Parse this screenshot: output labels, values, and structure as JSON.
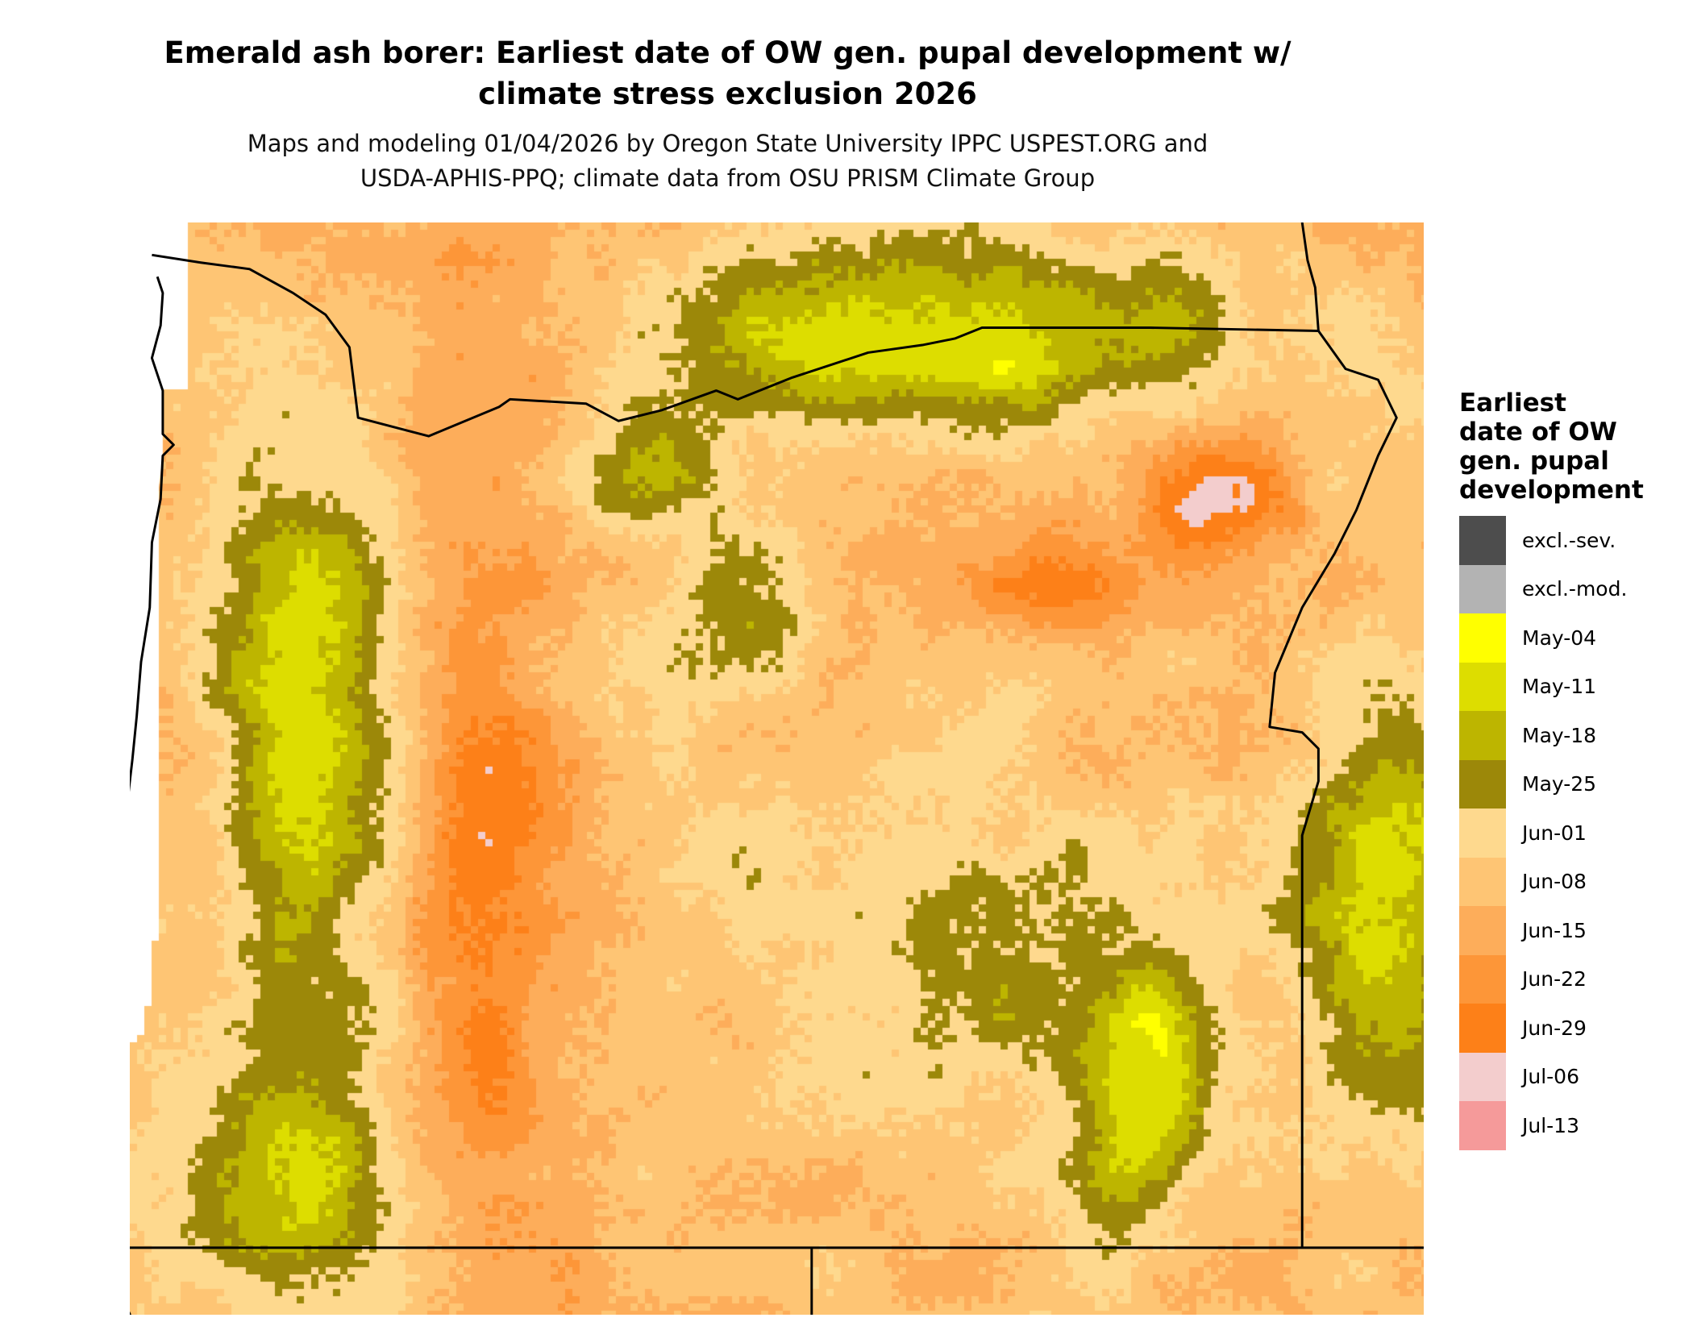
{
  "title": "Emerald ash borer: Earliest date of OW gen. pupal development w/ climate stress exclusion 2026",
  "title_lines": [
    "Emerald ash borer: Earliest date of OW gen. pupal development w/",
    "climate stress exclusion 2026"
  ],
  "subtitle_lines": [
    "Maps and modeling 01/04/2026 by Oregon State University IPPC USPEST.ORG and",
    "USDA-APHIS-PPQ; climate data from OSU PRISM Climate Group"
  ],
  "legend": {
    "title": "Earliest date of OW gen. pupal development",
    "items": [
      {
        "label": "excl.-sev.",
        "color": "#4d4d4d"
      },
      {
        "label": "excl.-mod.",
        "color": "#b3b3b3"
      },
      {
        "label": "May-04",
        "color": "#ffff00"
      },
      {
        "label": "May-11",
        "color": "#dddd00"
      },
      {
        "label": "May-18",
        "color": "#bdb500"
      },
      {
        "label": "May-25",
        "color": "#9c8809"
      },
      {
        "label": "Jun-01",
        "color": "#fed98e"
      },
      {
        "label": "Jun-08",
        "color": "#fec574"
      },
      {
        "label": "Jun-15",
        "color": "#fdad5a"
      },
      {
        "label": "Jun-22",
        "color": "#fd9638"
      },
      {
        "label": "Jun-29",
        "color": "#fd8018"
      },
      {
        "label": "Jul-06",
        "color": "#f3cdcd"
      },
      {
        "label": "Jul-13",
        "color": "#f59a9a"
      }
    ]
  },
  "map": {
    "region": "Oregon",
    "border_color": "#000000",
    "no_data_color": "#ffffff"
  }
}
